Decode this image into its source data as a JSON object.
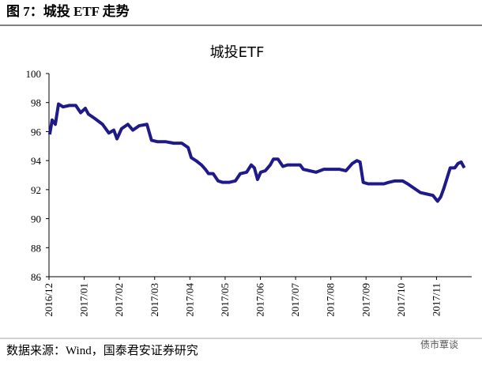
{
  "header": {
    "title": "图 7：城投 ETF 走势"
  },
  "chart_data": {
    "type": "line",
    "title": "城投ETF",
    "x": [
      0.02,
      0.09,
      0.18,
      0.27,
      0.4,
      0.58,
      0.76,
      0.9,
      1.03,
      1.12,
      1.3,
      1.52,
      1.7,
      1.84,
      1.93,
      2.06,
      2.24,
      2.38,
      2.56,
      2.78,
      2.91,
      3.09,
      3.32,
      3.54,
      3.77,
      3.95,
      4.04,
      4.17,
      4.33,
      4.44,
      4.53,
      4.66,
      4.8,
      4.93,
      5.11,
      5.29,
      5.43,
      5.61,
      5.74,
      5.83,
      5.92,
      6.01,
      6.14,
      6.28,
      6.37,
      6.5,
      6.64,
      6.77,
      6.95,
      7.13,
      7.22,
      7.4,
      7.58,
      7.8,
      8.03,
      8.25,
      8.43,
      8.61,
      8.74,
      8.83,
      8.92,
      9.06,
      9.28,
      9.51,
      9.64,
      9.82,
      10.04,
      10.18,
      10.36,
      10.54,
      10.72,
      10.9,
      11.03,
      11.12,
      11.21,
      11.3,
      11.39,
      11.52,
      11.61,
      11.7,
      11.79
    ],
    "series": [
      {
        "name": "城投ETF",
        "color": "#1f1a8a",
        "values": [
          95.8,
          96.8,
          96.5,
          97.9,
          97.7,
          97.8,
          97.8,
          97.3,
          97.6,
          97.2,
          96.9,
          96.5,
          95.9,
          96.1,
          95.5,
          96.2,
          96.5,
          96.1,
          96.4,
          96.5,
          95.4,
          95.3,
          95.3,
          95.2,
          95.2,
          94.9,
          94.2,
          94.0,
          93.7,
          93.4,
          93.1,
          93.1,
          92.6,
          92.5,
          92.5,
          92.6,
          93.1,
          93.2,
          93.7,
          93.5,
          92.7,
          93.2,
          93.3,
          93.7,
          94.1,
          94.1,
          93.6,
          93.7,
          93.7,
          93.7,
          93.4,
          93.3,
          93.2,
          93.4,
          93.4,
          93.4,
          93.3,
          93.8,
          94.0,
          93.9,
          92.5,
          92.4,
          92.4,
          92.4,
          92.5,
          92.6,
          92.6,
          92.4,
          92.1,
          91.8,
          91.7,
          91.6,
          91.2,
          91.5,
          92.1,
          92.8,
          93.5,
          93.5,
          93.8,
          93.9,
          93.5
        ]
      }
    ],
    "xlim": [
      0,
      12
    ],
    "xticks": [
      {
        "value": 0,
        "label": "2016/12"
      },
      {
        "value": 1,
        "label": "2017/01"
      },
      {
        "value": 2,
        "label": "2017/02"
      },
      {
        "value": 3,
        "label": "2017/03"
      },
      {
        "value": 4,
        "label": "2017/04"
      },
      {
        "value": 5,
        "label": "2017/05"
      },
      {
        "value": 6,
        "label": "2017/06"
      },
      {
        "value": 7,
        "label": "2017/07"
      },
      {
        "value": 8,
        "label": "2017/08"
      },
      {
        "value": 9,
        "label": "2017/09"
      },
      {
        "value": 10,
        "label": "2017/10"
      },
      {
        "value": 11,
        "label": "2017/11"
      }
    ],
    "ylim": [
      86,
      100
    ],
    "yticks": [
      86,
      88,
      90,
      92,
      94,
      96,
      98,
      100
    ]
  },
  "footer": {
    "source": "数据来源：Wind，国泰君安证券研究",
    "watermark": "债市覃谈"
  }
}
